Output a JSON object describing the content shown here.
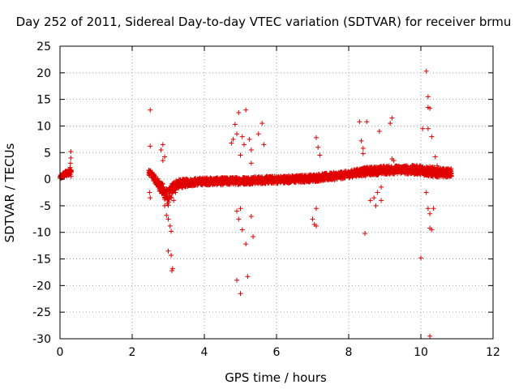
{
  "chart_data": {
    "type": "scatter",
    "title": "Day 252 of 2011, Sidereal Day-to-day VTEC variation (SDTVAR) for receiver brmu",
    "xlabel": "GPS time / hours",
    "ylabel": "SDTVAR / TECUs",
    "xlim": [
      0,
      12
    ],
    "ylim": [
      -30,
      25
    ],
    "xticks": [
      0,
      2,
      4,
      6,
      8,
      10,
      12
    ],
    "xtick_labels": [
      "0",
      "2",
      "4",
      "6",
      "8",
      "10",
      "12"
    ],
    "yticks": [
      25,
      20,
      15,
      10,
      5,
      0,
      -5,
      -10,
      -15,
      -20,
      -25,
      -30
    ],
    "ytick_labels": [
      "25",
      "20",
      "15",
      "10",
      "5",
      "0",
      "-5",
      "-10",
      "-15",
      "-20",
      "-25",
      "-30"
    ],
    "grid": true,
    "marker": "+",
    "color": "#e00000",
    "series": [
      {
        "name": "SDTVAR",
        "dense_band": {
          "x": [
            0.0,
            0.1,
            0.2,
            0.3,
            2.5,
            3.0,
            3.1,
            3.2,
            3.4,
            3.6,
            3.8,
            4.0,
            4.5,
            5.0,
            5.5,
            6.0,
            6.5,
            7.0,
            7.5,
            8.0,
            8.2,
            8.4,
            8.6,
            8.8,
            9.0,
            9.5,
            10.0,
            10.2,
            10.4,
            10.6,
            10.85
          ],
          "center": [
            0.3,
            0.8,
            1.2,
            1.5,
            1.2,
            -3.5,
            -2.0,
            -1.0,
            -0.8,
            -0.6,
            -0.5,
            -0.4,
            -0.4,
            -0.3,
            -0.2,
            -0.1,
            0.0,
            0.2,
            0.5,
            0.9,
            1.2,
            1.4,
            1.5,
            1.6,
            1.7,
            1.8,
            1.7,
            1.5,
            1.3,
            1.2,
            1.2
          ],
          "half_width": [
            0.4,
            0.5,
            0.6,
            0.6,
            0.5,
            1.5,
            1.2,
            0.9,
            0.8,
            0.7,
            0.7,
            0.7,
            0.7,
            0.7,
            0.7,
            0.7,
            0.7,
            0.7,
            0.7,
            0.7,
            0.7,
            0.8,
            0.8,
            0.8,
            0.8,
            0.8,
            0.9,
            1.0,
            0.9,
            0.8,
            0.8
          ],
          "gaps": [
            [
              0.32,
              2.45
            ]
          ]
        },
        "points": [
          {
            "x": 0.3,
            "y": 5.2
          },
          {
            "x": 0.3,
            "y": 4.0
          },
          {
            "x": 0.29,
            "y": 3.0
          },
          {
            "x": 0.28,
            "y": 2.2
          },
          {
            "x": 0.31,
            "y": 0.5
          },
          {
            "x": 2.5,
            "y": 13.0
          },
          {
            "x": 2.5,
            "y": 6.2
          },
          {
            "x": 2.48,
            "y": -2.5
          },
          {
            "x": 2.5,
            "y": -3.5
          },
          {
            "x": 2.85,
            "y": 6.5
          },
          {
            "x": 2.8,
            "y": 5.5
          },
          {
            "x": 2.9,
            "y": 4.2
          },
          {
            "x": 2.85,
            "y": 3.5
          },
          {
            "x": 2.9,
            "y": -5.0
          },
          {
            "x": 2.95,
            "y": -6.8
          },
          {
            "x": 3.0,
            "y": -7.5
          },
          {
            "x": 3.05,
            "y": -8.8
          },
          {
            "x": 3.08,
            "y": -9.8
          },
          {
            "x": 3.0,
            "y": -13.5
          },
          {
            "x": 3.08,
            "y": -14.3
          },
          {
            "x": 3.12,
            "y": -16.8
          },
          {
            "x": 3.1,
            "y": -17.2
          },
          {
            "x": 3.15,
            "y": -4.0
          },
          {
            "x": 3.2,
            "y": -2.5
          },
          {
            "x": 4.75,
            "y": 6.8
          },
          {
            "x": 4.8,
            "y": 7.5
          },
          {
            "x": 4.85,
            "y": 10.3
          },
          {
            "x": 4.9,
            "y": 8.5
          },
          {
            "x": 4.95,
            "y": 12.5
          },
          {
            "x": 5.05,
            "y": 8.0
          },
          {
            "x": 5.1,
            "y": 6.5
          },
          {
            "x": 5.0,
            "y": 4.5
          },
          {
            "x": 4.9,
            "y": -6.0
          },
          {
            "x": 4.95,
            "y": -7.5
          },
          {
            "x": 5.0,
            "y": -5.5
          },
          {
            "x": 5.05,
            "y": -9.5
          },
          {
            "x": 4.9,
            "y": -19.0
          },
          {
            "x": 5.0,
            "y": -21.5
          },
          {
            "x": 5.15,
            "y": -12.2
          },
          {
            "x": 5.2,
            "y": -18.3
          },
          {
            "x": 5.15,
            "y": 13.0
          },
          {
            "x": 5.25,
            "y": 7.5
          },
          {
            "x": 5.3,
            "y": 5.5
          },
          {
            "x": 5.3,
            "y": 3.0
          },
          {
            "x": 5.3,
            "y": -7.0
          },
          {
            "x": 5.35,
            "y": -10.8
          },
          {
            "x": 5.5,
            "y": 8.5
          },
          {
            "x": 5.6,
            "y": 10.5
          },
          {
            "x": 5.65,
            "y": 6.5
          },
          {
            "x": 7.1,
            "y": 7.8
          },
          {
            "x": 7.15,
            "y": 6.0
          },
          {
            "x": 7.2,
            "y": 4.5
          },
          {
            "x": 7.1,
            "y": -5.5
          },
          {
            "x": 7.0,
            "y": -7.5
          },
          {
            "x": 7.05,
            "y": -8.5
          },
          {
            "x": 7.1,
            "y": -8.8
          },
          {
            "x": 8.3,
            "y": 10.8
          },
          {
            "x": 8.35,
            "y": 7.2
          },
          {
            "x": 8.4,
            "y": 5.8
          },
          {
            "x": 8.4,
            "y": 4.8
          },
          {
            "x": 8.5,
            "y": 10.8
          },
          {
            "x": 8.45,
            "y": -10.2
          },
          {
            "x": 8.6,
            "y": -4.0
          },
          {
            "x": 8.7,
            "y": -3.5
          },
          {
            "x": 8.8,
            "y": -2.5
          },
          {
            "x": 8.9,
            "y": -4.0
          },
          {
            "x": 8.75,
            "y": -5.0
          },
          {
            "x": 8.85,
            "y": 9.0
          },
          {
            "x": 9.2,
            "y": 11.5
          },
          {
            "x": 9.15,
            "y": 10.5
          },
          {
            "x": 9.2,
            "y": 3.8
          },
          {
            "x": 9.25,
            "y": 3.5
          },
          {
            "x": 8.9,
            "y": -1.5
          },
          {
            "x": 10.05,
            "y": 9.5
          },
          {
            "x": 10.0,
            "y": -14.8
          },
          {
            "x": 10.15,
            "y": 20.3
          },
          {
            "x": 10.2,
            "y": 15.5
          },
          {
            "x": 10.2,
            "y": 13.5
          },
          {
            "x": 10.25,
            "y": 13.3
          },
          {
            "x": 10.2,
            "y": 9.5
          },
          {
            "x": 10.3,
            "y": 8.0
          },
          {
            "x": 10.15,
            "y": -2.5
          },
          {
            "x": 10.2,
            "y": -5.5
          },
          {
            "x": 10.25,
            "y": -6.5
          },
          {
            "x": 10.25,
            "y": -9.2
          },
          {
            "x": 10.3,
            "y": -9.5
          },
          {
            "x": 10.35,
            "y": -5.5
          },
          {
            "x": 10.25,
            "y": -29.5
          },
          {
            "x": 10.4,
            "y": 4.2
          },
          {
            "x": 10.45,
            "y": 2.5
          }
        ]
      }
    ]
  }
}
